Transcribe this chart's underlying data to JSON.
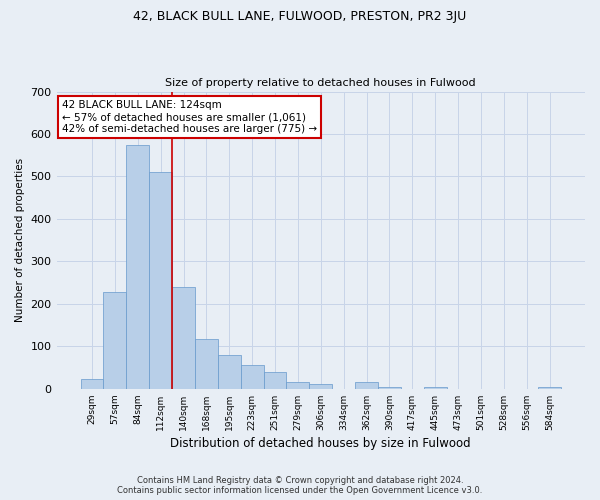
{
  "title": "42, BLACK BULL LANE, FULWOOD, PRESTON, PR2 3JU",
  "subtitle": "Size of property relative to detached houses in Fulwood",
  "xlabel": "Distribution of detached houses by size in Fulwood",
  "ylabel": "Number of detached properties",
  "categories": [
    "29sqm",
    "57sqm",
    "84sqm",
    "112sqm",
    "140sqm",
    "168sqm",
    "195sqm",
    "223sqm",
    "251sqm",
    "279sqm",
    "306sqm",
    "334sqm",
    "362sqm",
    "390sqm",
    "417sqm",
    "445sqm",
    "473sqm",
    "501sqm",
    "528sqm",
    "556sqm",
    "584sqm"
  ],
  "values": [
    22,
    228,
    575,
    510,
    240,
    118,
    80,
    55,
    40,
    15,
    12,
    0,
    15,
    5,
    0,
    5,
    0,
    0,
    0,
    0,
    5
  ],
  "bar_color": "#b8cfe8",
  "bar_edge_color": "#6699cc",
  "vline_color": "#cc0000",
  "vline_x": 3.5,
  "annotation_text": "42 BLACK BULL LANE: 124sqm\n← 57% of detached houses are smaller (1,061)\n42% of semi-detached houses are larger (775) →",
  "annotation_box_color": "#ffffff",
  "annotation_box_edge_color": "#cc0000",
  "grid_color": "#c8d4e8",
  "background_color": "#e8eef5",
  "footer_line1": "Contains HM Land Registry data © Crown copyright and database right 2024.",
  "footer_line2": "Contains public sector information licensed under the Open Government Licence v3.0.",
  "ylim": [
    0,
    700
  ],
  "yticks": [
    0,
    100,
    200,
    300,
    400,
    500,
    600,
    700
  ]
}
